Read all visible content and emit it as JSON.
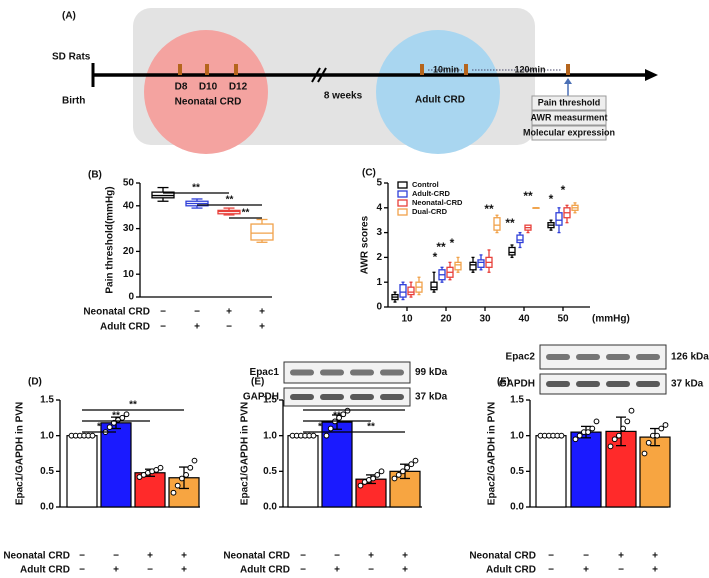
{
  "diagram": {
    "label": "(A)",
    "start": {
      "title": "SD Rats",
      "subtitle": "Birth"
    },
    "neonatal": {
      "days": [
        "D8",
        "D10",
        "D12"
      ],
      "label": "Neonatal CRD"
    },
    "gap": "8 weeks",
    "adult": {
      "label": "Adult CRD",
      "intervals": [
        "10min",
        "120min"
      ]
    },
    "outcomes": [
      "Pain threshold",
      "AWR measurment",
      "Molecular expression"
    ]
  },
  "chart_data": [
    {
      "type": "box",
      "panel": "(B)",
      "ylabel": "Pain threshold(mmHg)",
      "ylim": [
        0,
        50
      ],
      "yticks": [
        0,
        10,
        20,
        30,
        40,
        50
      ],
      "boxes": [
        {
          "color": "#000000",
          "min": 42,
          "q1": 43.5,
          "median": 44.5,
          "q3": 46,
          "max": 48
        },
        {
          "color": "#2f3fd8",
          "min": 39,
          "q1": 40,
          "median": 41,
          "q3": 42,
          "max": 43
        },
        {
          "color": "#e8403a",
          "min": 36,
          "q1": 36.5,
          "median": 37.5,
          "q3": 38,
          "max": 39
        },
        {
          "color": "#f0a24a",
          "min": 24,
          "q1": 25,
          "median": 28,
          "q3": 32,
          "max": 34
        }
      ],
      "conditions": [
        {
          "name": "Neonatal CRD",
          "signs": [
            "−",
            "−",
            "+",
            "+"
          ]
        },
        {
          "name": "Adult CRD",
          "signs": [
            "−",
            "+",
            "−",
            "+"
          ]
        }
      ],
      "annotations": [
        "**",
        "**",
        "**"
      ]
    },
    {
      "type": "grouped_box",
      "panel": "(C)",
      "ylabel": "AWR scores",
      "xlabel": "(mmHg)",
      "categories": [
        "10",
        "20",
        "30",
        "40",
        "50"
      ],
      "ylim": [
        0,
        5
      ],
      "yticks": [
        0,
        1,
        2,
        3,
        4,
        5
      ],
      "legend": "upper left",
      "series": [
        {
          "name": "Control",
          "color": "#000000",
          "boxes": [
            {
              "min": 0.2,
              "q1": 0.3,
              "median": 0.4,
              "q3": 0.5,
              "max": 0.6
            },
            {
              "min": 0.6,
              "q1": 0.7,
              "median": 0.8,
              "q3": 1.0,
              "max": 1.4
            },
            {
              "min": 1.4,
              "q1": 1.5,
              "median": 1.7,
              "q3": 1.8,
              "max": 2.0
            },
            {
              "min": 2.0,
              "q1": 2.1,
              "median": 2.2,
              "q3": 2.4,
              "max": 2.5
            },
            {
              "min": 3.1,
              "q1": 3.2,
              "median": 3.3,
              "q3": 3.4,
              "max": 3.5
            }
          ]
        },
        {
          "name": "Adult-CRD",
          "color": "#2f3fd8",
          "boxes": [
            {
              "min": 0.3,
              "q1": 0.4,
              "median": 0.6,
              "q3": 0.9,
              "max": 1.0
            },
            {
              "min": 1.0,
              "q1": 1.1,
              "median": 1.3,
              "q3": 1.5,
              "max": 1.6
            },
            {
              "min": 1.5,
              "q1": 1.6,
              "median": 1.8,
              "q3": 1.9,
              "max": 2.1
            },
            {
              "min": 2.4,
              "q1": 2.6,
              "median": 2.7,
              "q3": 2.9,
              "max": 3.0
            },
            {
              "min": 3.0,
              "q1": 3.3,
              "median": 3.5,
              "q3": 3.8,
              "max": 4.0
            }
          ]
        },
        {
          "name": "Neonatal-CRD",
          "color": "#e8403a",
          "boxes": [
            {
              "min": 0.4,
              "q1": 0.5,
              "median": 0.6,
              "q3": 0.8,
              "max": 1.0
            },
            {
              "min": 1.1,
              "q1": 1.2,
              "median": 1.4,
              "q3": 1.6,
              "max": 1.8
            },
            {
              "min": 1.4,
              "q1": 1.6,
              "median": 1.8,
              "q3": 2.0,
              "max": 2.3
            },
            {
              "min": 3.0,
              "q1": 3.1,
              "median": 3.2,
              "q3": 3.3,
              "max": 3.3
            },
            {
              "min": 3.4,
              "q1": 3.6,
              "median": 3.8,
              "q3": 4.0,
              "max": 4.1
            }
          ]
        },
        {
          "name": "Dual-CRD",
          "color": "#f0a24a",
          "boxes": [
            {
              "min": 0.5,
              "q1": 0.6,
              "median": 0.8,
              "q3": 1.0,
              "max": 1.2
            },
            {
              "min": 1.4,
              "q1": 1.5,
              "median": 1.7,
              "q3": 1.8,
              "max": 2.0
            },
            {
              "min": 3.0,
              "q1": 3.1,
              "median": 3.3,
              "q3": 3.6,
              "max": 3.7
            },
            {
              "min": 4.0,
              "q1": 4.0,
              "median": 4.0,
              "q3": 4.0,
              "max": 4.0
            },
            {
              "min": 3.8,
              "q1": 3.9,
              "median": 4.0,
              "q3": 4.1,
              "max": 4.2
            }
          ]
        }
      ],
      "annotations": [
        "*",
        "**",
        "*",
        "**",
        "**",
        "**",
        "*",
        "*"
      ]
    },
    {
      "type": "bar",
      "panel": "(D)",
      "ylabel": "Epac1/GAPDH in PVN",
      "ylim": [
        0,
        1.5
      ],
      "yticks": [
        {
          "value": 0,
          "label": "0.0"
        },
        0.5,
        {
          "value": 1,
          "label": "1.0"
        },
        1.5
      ],
      "values": [
        1.0,
        1.18,
        0.48,
        0.41
      ],
      "errors": [
        0,
        0.08,
        0.05,
        0.15
      ],
      "colors": [
        "#ffffff",
        "#1a1aff",
        "#ff2a2a",
        "#f7a541"
      ],
      "points": [
        [
          1,
          1,
          1,
          1,
          1,
          1
        ],
        [
          1.05,
          1.12,
          1.18,
          1.22,
          1.25,
          1.3
        ],
        [
          0.42,
          0.45,
          0.48,
          0.5,
          0.52,
          0.55
        ],
        [
          0.2,
          0.3,
          0.4,
          0.45,
          0.55,
          0.65
        ]
      ],
      "conditions": [
        {
          "name": "Neonatal CRD",
          "signs": [
            "−",
            "−",
            "+",
            "+"
          ]
        },
        {
          "name": "Adult CRD",
          "signs": [
            "−",
            "+",
            "−",
            "+"
          ]
        }
      ],
      "annotations": [
        "*",
        "**",
        "**"
      ]
    },
    {
      "type": "bar",
      "panel": "(E)",
      "ylabel": "Epac1/GAPDH in PVN",
      "ylim": [
        0,
        1.5
      ],
      "yticks": [
        {
          "value": 0,
          "label": "0.0"
        },
        0.5,
        {
          "value": 1,
          "label": "1.0"
        },
        1.5
      ],
      "values": [
        1.0,
        1.19,
        0.39,
        0.5
      ],
      "errors": [
        0,
        0.1,
        0.06,
        0.1
      ],
      "colors": [
        "#ffffff",
        "#1a1aff",
        "#ff2a2a",
        "#f7a541"
      ],
      "points": [
        [
          1,
          1,
          1,
          1,
          1,
          1
        ],
        [
          1.0,
          1.1,
          1.2,
          1.25,
          1.3,
          1.35
        ],
        [
          0.3,
          0.35,
          0.38,
          0.4,
          0.45,
          0.5
        ],
        [
          0.4,
          0.45,
          0.5,
          0.55,
          0.6,
          0.65
        ]
      ],
      "conditions": [
        {
          "name": "Neonatal CRD",
          "signs": [
            "−",
            "−",
            "+",
            "+"
          ]
        },
        {
          "name": "Adult CRD",
          "signs": [
            "−",
            "+",
            "−",
            "+"
          ]
        }
      ],
      "annotations": [
        "*",
        "**",
        "**",
        "**"
      ],
      "blot": [
        {
          "protein": "Epac1",
          "size": "99 kDa"
        },
        {
          "protein": "GAPDH",
          "size": "37 kDa"
        }
      ]
    },
    {
      "type": "bar",
      "panel": "(F)",
      "ylabel": "Epac2/GAPDH in PVN",
      "ylim": [
        0,
        1.5
      ],
      "yticks": [
        {
          "value": 0,
          "label": "0.0"
        },
        0.5,
        {
          "value": 1,
          "label": "1.0"
        },
        1.5
      ],
      "values": [
        1.0,
        1.05,
        1.06,
        0.98
      ],
      "errors": [
        0,
        0.08,
        0.2,
        0.12
      ],
      "colors": [
        "#ffffff",
        "#1a1aff",
        "#ff2a2a",
        "#f7a541"
      ],
      "points": [
        [
          1,
          1,
          1,
          1,
          1,
          1
        ],
        [
          0.95,
          1.0,
          1.05,
          1.05,
          1.1,
          1.2
        ],
        [
          0.85,
          0.95,
          1.0,
          1.1,
          1.2,
          1.35
        ],
        [
          0.75,
          0.9,
          1.0,
          1.0,
          1.1,
          1.15
        ]
      ],
      "conditions": [
        {
          "name": "Neonatal CRD",
          "signs": [
            "−",
            "−",
            "+",
            "+"
          ]
        },
        {
          "name": "Adult CRD",
          "signs": [
            "−",
            "+",
            "−",
            "+"
          ]
        }
      ],
      "annotations": [],
      "blot": [
        {
          "protein": "Epac2",
          "size": "126 kDa"
        },
        {
          "protein": "GAPDH",
          "size": "37 kDa"
        }
      ]
    }
  ]
}
